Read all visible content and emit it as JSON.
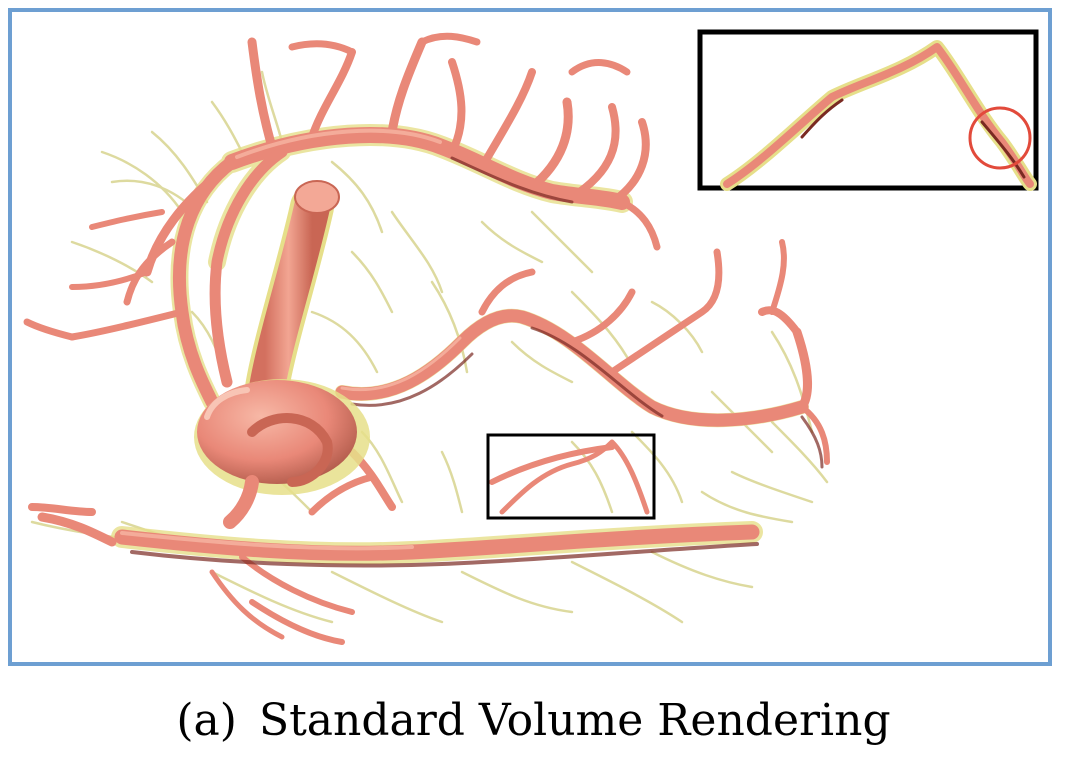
{
  "figure": {
    "panel_label": "(a)",
    "caption": "Standard Volume Rendering"
  },
  "colors": {
    "panel_border": "#6d9fd2",
    "vessel_body": "#e98878",
    "vessel_highlight": "#f6b5a3",
    "vessel_shadow": "#7a2a22",
    "vessel_halo": "#e6df8a",
    "fine_vessel": "#d8d48f",
    "zoom_box": "#000000",
    "highlight_circle": "#e24a3b"
  },
  "annotations": {
    "zoom_region": "inset",
    "highlight_marker": "circle"
  }
}
